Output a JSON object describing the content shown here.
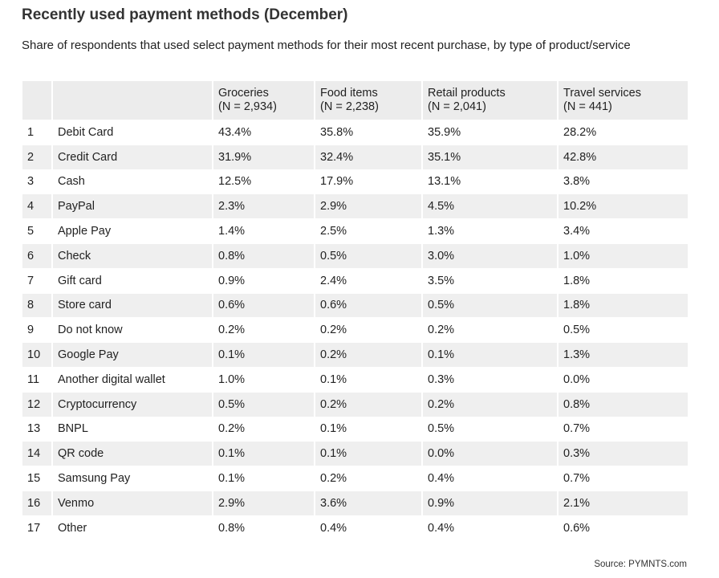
{
  "chart_data": {
    "type": "table",
    "title": "Recently used payment methods (December)",
    "subtitle": "Share of respondents that used select payment methods for their most recent purchase, by type of product/service",
    "columns": [
      {
        "label": "Groceries",
        "n": "(N = 2,934)"
      },
      {
        "label": "Food items",
        "n": "(N = 2,238)"
      },
      {
        "label": "Retail products",
        "n": "(N = 2,041)"
      },
      {
        "label": "Travel services",
        "n": "(N = 441)"
      }
    ],
    "rows": [
      {
        "rank": "1",
        "method": "Debit Card",
        "values": [
          "43.4%",
          "35.8%",
          "35.9%",
          "28.2%"
        ]
      },
      {
        "rank": "2",
        "method": "Credit Card",
        "values": [
          "31.9%",
          "32.4%",
          "35.1%",
          "42.8%"
        ]
      },
      {
        "rank": "3",
        "method": "Cash",
        "values": [
          "12.5%",
          "17.9%",
          "13.1%",
          "3.8%"
        ]
      },
      {
        "rank": "4",
        "method": "PayPal",
        "values": [
          "2.3%",
          "2.9%",
          "4.5%",
          "10.2%"
        ]
      },
      {
        "rank": "5",
        "method": "Apple Pay",
        "values": [
          "1.4%",
          "2.5%",
          "1.3%",
          "3.4%"
        ]
      },
      {
        "rank": "6",
        "method": "Check",
        "values": [
          "0.8%",
          "0.5%",
          "3.0%",
          "1.0%"
        ]
      },
      {
        "rank": "7",
        "method": "Gift card",
        "values": [
          "0.9%",
          "2.4%",
          "3.5%",
          "1.8%"
        ]
      },
      {
        "rank": "8",
        "method": "Store card",
        "values": [
          "0.6%",
          "0.6%",
          "0.5%",
          "1.8%"
        ]
      },
      {
        "rank": "9",
        "method": "Do not know",
        "values": [
          "0.2%",
          "0.2%",
          "0.2%",
          "0.5%"
        ]
      },
      {
        "rank": "10",
        "method": "Google Pay",
        "values": [
          "0.1%",
          "0.2%",
          "0.1%",
          "1.3%"
        ]
      },
      {
        "rank": "11",
        "method": "Another digital wallet",
        "values": [
          "1.0%",
          "0.1%",
          "0.3%",
          "0.0%"
        ]
      },
      {
        "rank": "12",
        "method": "Cryptocurrency",
        "values": [
          "0.5%",
          "0.2%",
          "0.2%",
          "0.8%"
        ]
      },
      {
        "rank": "13",
        "method": "BNPL",
        "values": [
          "0.2%",
          "0.1%",
          "0.5%",
          "0.7%"
        ]
      },
      {
        "rank": "14",
        "method": "QR code",
        "values": [
          "0.1%",
          "0.1%",
          "0.0%",
          "0.3%"
        ]
      },
      {
        "rank": "15",
        "method": "Samsung Pay",
        "values": [
          "0.1%",
          "0.2%",
          "0.4%",
          "0.7%"
        ]
      },
      {
        "rank": "16",
        "method": "Venmo",
        "values": [
          "2.9%",
          "3.6%",
          "0.9%",
          "2.1%"
        ]
      },
      {
        "rank": "17",
        "method": "Other",
        "values": [
          "0.8%",
          "0.4%",
          "0.4%",
          "0.6%"
        ]
      }
    ],
    "source": "Source: PYMNTS.com"
  }
}
